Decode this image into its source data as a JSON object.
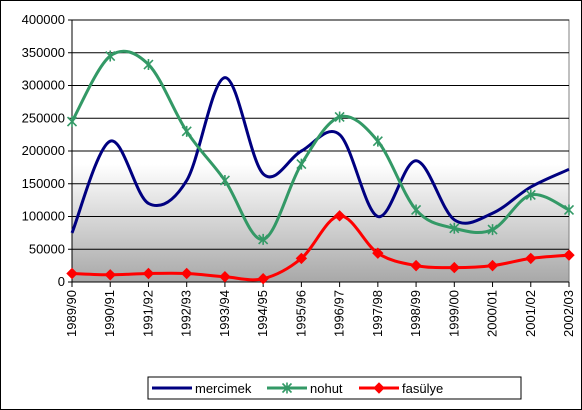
{
  "chart_data": {
    "type": "line",
    "title": "",
    "xlabel": "",
    "ylabel": "",
    "categories": [
      "1989/90",
      "1990/91",
      "1991/92",
      "1992/93",
      "1993/94",
      "1994/95",
      "1995/96",
      "1996/97",
      "1997/98",
      "1998/99",
      "1999/00",
      "2000/01",
      "2001/02",
      "2002/03"
    ],
    "y_ticks": [
      "0",
      "50000",
      "100000",
      "150000",
      "200000",
      "250000",
      "300000",
      "350000",
      "400000"
    ],
    "ylim": [
      0,
      400000
    ],
    "grid": "horizontal",
    "legend_position": "bottom",
    "series": [
      {
        "name": "mercimek",
        "color": "#000080",
        "marker": "none",
        "values": [
          75000,
          215000,
          120000,
          155000,
          312000,
          165000,
          200000,
          225000,
          100000,
          185000,
          95000,
          105000,
          145000,
          172000
        ]
      },
      {
        "name": "nohut",
        "color": "#339966",
        "marker": "star",
        "values": [
          245000,
          345000,
          332000,
          230000,
          155000,
          65000,
          180000,
          252000,
          215000,
          110000,
          82000,
          80000,
          133000,
          110000
        ]
      },
      {
        "name": "fasülye",
        "color": "#ff0000",
        "marker": "diamond",
        "values": [
          13000,
          11000,
          13000,
          13000,
          8000,
          5000,
          36000,
          101000,
          44000,
          25000,
          22000,
          25000,
          36000,
          41000
        ]
      }
    ]
  }
}
